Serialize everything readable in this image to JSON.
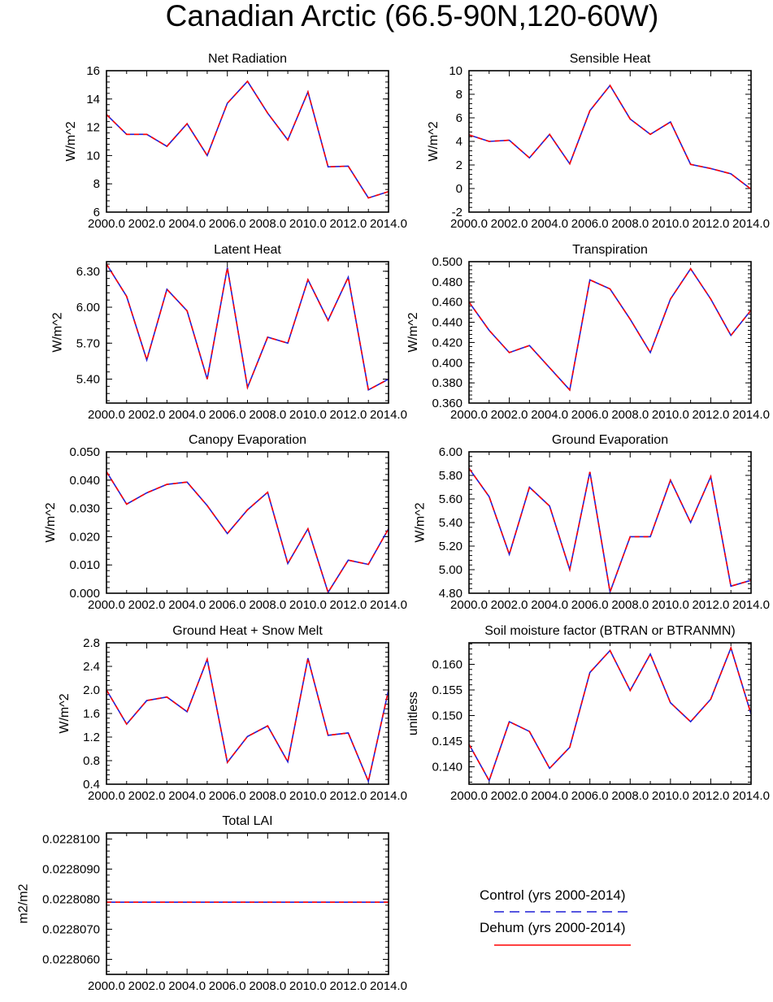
{
  "figure_title": "Canadian Arctic (66.5-90N,120-60W)",
  "colors": {
    "control": "#1f1fd6",
    "dehum": "#ff0000",
    "axis": "#000000"
  },
  "legend": {
    "control_label": "Control (yrs 2000-2014)",
    "dehum_label": "Dehum (yrs 2000-2014)"
  },
  "chart_data": [
    {
      "type": "line",
      "title": "Net Radiation",
      "xlabel": "",
      "ylabel": "W/m^2",
      "x": [
        2000,
        2001,
        2002,
        2003,
        2004,
        2005,
        2006,
        2007,
        2008,
        2009,
        2010,
        2011,
        2012,
        2013,
        2014
      ],
      "xlim": [
        2000,
        2014
      ],
      "xticks": [
        "2000.0",
        "2002.0",
        "2004.0",
        "2006.0",
        "2008.0",
        "2010.0",
        "2012.0",
        "2014.0"
      ],
      "ylim": [
        6,
        16
      ],
      "yticks": [
        "6",
        "8",
        "10",
        "12",
        "14",
        "16"
      ],
      "series": [
        {
          "name": "Control",
          "values": [
            12.9,
            11.5,
            11.5,
            10.65,
            12.25,
            10.0,
            13.7,
            15.25,
            13.0,
            11.1,
            14.5,
            9.2,
            9.25,
            7.0,
            7.45
          ]
        },
        {
          "name": "Dehum",
          "values": [
            12.9,
            11.5,
            11.5,
            10.65,
            12.25,
            10.0,
            13.7,
            15.25,
            13.0,
            11.1,
            14.5,
            9.2,
            9.25,
            7.0,
            7.45
          ]
        }
      ]
    },
    {
      "type": "line",
      "title": "Sensible Heat",
      "xlabel": "",
      "ylabel": "W/m^2",
      "x": [
        2000,
        2001,
        2002,
        2003,
        2004,
        2005,
        2006,
        2007,
        2008,
        2009,
        2010,
        2011,
        2012,
        2013,
        2014
      ],
      "xlim": [
        2000,
        2014
      ],
      "xticks": [
        "2000.0",
        "2002.0",
        "2004.0",
        "2006.0",
        "2008.0",
        "2010.0",
        "2012.0",
        "2014.0"
      ],
      "ylim": [
        -2,
        10
      ],
      "yticks": [
        "-2",
        "0",
        "2",
        "4",
        "6",
        "8",
        "10"
      ],
      "series": [
        {
          "name": "Control",
          "values": [
            4.55,
            4.0,
            4.1,
            2.6,
            4.6,
            2.1,
            6.6,
            8.75,
            5.9,
            4.6,
            5.65,
            2.05,
            1.7,
            1.25,
            -0.05
          ]
        },
        {
          "name": "Dehum",
          "values": [
            4.55,
            4.0,
            4.1,
            2.6,
            4.6,
            2.1,
            6.6,
            8.75,
            5.9,
            4.6,
            5.65,
            2.05,
            1.7,
            1.25,
            -0.05
          ]
        }
      ]
    },
    {
      "type": "line",
      "title": "Latent Heat",
      "xlabel": "",
      "ylabel": "W/m^2",
      "x": [
        2000,
        2001,
        2002,
        2003,
        2004,
        2005,
        2006,
        2007,
        2008,
        2009,
        2010,
        2011,
        2012,
        2013,
        2014
      ],
      "xlim": [
        2000,
        2014
      ],
      "xticks": [
        "2000.0",
        "2002.0",
        "2004.0",
        "2006.0",
        "2008.0",
        "2010.0",
        "2012.0",
        "2014.0"
      ],
      "ylim": [
        5.2,
        6.38
      ],
      "yticks": [
        "5.40",
        "5.70",
        "6.00",
        "6.30"
      ],
      "series": [
        {
          "name": "Control",
          "values": [
            6.36,
            6.09,
            5.56,
            6.15,
            5.97,
            5.4,
            6.33,
            5.33,
            5.75,
            5.7,
            6.23,
            5.89,
            6.25,
            5.31,
            5.4
          ]
        },
        {
          "name": "Dehum",
          "values": [
            6.36,
            6.09,
            5.56,
            6.15,
            5.97,
            5.4,
            6.33,
            5.33,
            5.75,
            5.7,
            6.23,
            5.89,
            6.25,
            5.31,
            5.4
          ]
        }
      ]
    },
    {
      "type": "line",
      "title": "Transpiration",
      "xlabel": "",
      "ylabel": "W/m^2",
      "x": [
        2000,
        2001,
        2002,
        2003,
        2004,
        2005,
        2006,
        2007,
        2008,
        2009,
        2010,
        2011,
        2012,
        2013,
        2014
      ],
      "xlim": [
        2000,
        2014
      ],
      "xticks": [
        "2000.0",
        "2002.0",
        "2004.0",
        "2006.0",
        "2008.0",
        "2010.0",
        "2012.0",
        "2014.0"
      ],
      "ylim": [
        0.36,
        0.5
      ],
      "yticks": [
        "0.360",
        "0.380",
        "0.400",
        "0.420",
        "0.440",
        "0.460",
        "0.480",
        "0.500"
      ],
      "series": [
        {
          "name": "Control",
          "values": [
            0.46,
            0.432,
            0.41,
            0.417,
            0.395,
            0.373,
            0.482,
            0.473,
            0.443,
            0.41,
            0.463,
            0.493,
            0.463,
            0.427,
            0.452
          ]
        },
        {
          "name": "Dehum",
          "values": [
            0.46,
            0.432,
            0.41,
            0.417,
            0.395,
            0.373,
            0.482,
            0.473,
            0.443,
            0.41,
            0.463,
            0.493,
            0.463,
            0.427,
            0.452
          ]
        }
      ]
    },
    {
      "type": "line",
      "title": "Canopy Evaporation",
      "xlabel": "",
      "ylabel": "W/m^2",
      "x": [
        2000,
        2001,
        2002,
        2003,
        2004,
        2005,
        2006,
        2007,
        2008,
        2009,
        2010,
        2011,
        2012,
        2013,
        2014
      ],
      "xlim": [
        2000,
        2014
      ],
      "xticks": [
        "2000.0",
        "2002.0",
        "2004.0",
        "2006.0",
        "2008.0",
        "2010.0",
        "2012.0",
        "2014.0"
      ],
      "ylim": [
        0,
        0.05
      ],
      "yticks": [
        "0.000",
        "0.010",
        "0.020",
        "0.030",
        "0.040",
        "0.050"
      ],
      "series": [
        {
          "name": "Control",
          "values": [
            0.043,
            0.0315,
            0.0355,
            0.0385,
            0.0393,
            0.031,
            0.0211,
            0.0295,
            0.0357,
            0.0105,
            0.0228,
            0.0003,
            0.0117,
            0.0102,
            0.0228
          ]
        },
        {
          "name": "Dehum",
          "values": [
            0.043,
            0.0315,
            0.0355,
            0.0385,
            0.0393,
            0.031,
            0.0211,
            0.0295,
            0.0357,
            0.0105,
            0.0228,
            0.0003,
            0.0117,
            0.0102,
            0.0228
          ]
        }
      ]
    },
    {
      "type": "line",
      "title": "Ground Evaporation",
      "xlabel": "",
      "ylabel": "W/m^2",
      "x": [
        2000,
        2001,
        2002,
        2003,
        2004,
        2005,
        2006,
        2007,
        2008,
        2009,
        2010,
        2011,
        2012,
        2013,
        2014
      ],
      "xlim": [
        2000,
        2014
      ],
      "xticks": [
        "2000.0",
        "2002.0",
        "2004.0",
        "2006.0",
        "2008.0",
        "2010.0",
        "2012.0",
        "2014.0"
      ],
      "ylim": [
        4.8,
        6.0
      ],
      "yticks": [
        "4.80",
        "5.00",
        "5.20",
        "5.40",
        "5.60",
        "5.80",
        "6.00"
      ],
      "series": [
        {
          "name": "Control",
          "values": [
            5.86,
            5.62,
            5.13,
            5.7,
            5.54,
            5.0,
            5.83,
            4.81,
            5.28,
            5.28,
            5.76,
            5.4,
            5.79,
            4.86,
            4.91
          ]
        },
        {
          "name": "Dehum",
          "values": [
            5.86,
            5.62,
            5.13,
            5.7,
            5.54,
            5.0,
            5.83,
            4.81,
            5.28,
            5.28,
            5.76,
            5.4,
            5.79,
            4.86,
            4.91
          ]
        }
      ]
    },
    {
      "type": "line",
      "title": "Ground Heat + Snow Melt",
      "xlabel": "",
      "ylabel": "W/m^2",
      "x": [
        2000,
        2001,
        2002,
        2003,
        2004,
        2005,
        2006,
        2007,
        2008,
        2009,
        2010,
        2011,
        2012,
        2013,
        2014
      ],
      "xlim": [
        2000,
        2014
      ],
      "xticks": [
        "2000.0",
        "2002.0",
        "2004.0",
        "2006.0",
        "2008.0",
        "2010.0",
        "2012.0",
        "2014.0"
      ],
      "ylim": [
        0.4,
        2.8
      ],
      "yticks": [
        "0.4",
        "0.8",
        "1.2",
        "1.6",
        "2.0",
        "2.4",
        "2.8"
      ],
      "series": [
        {
          "name": "Control",
          "values": [
            2.0,
            1.42,
            1.82,
            1.88,
            1.63,
            2.52,
            0.77,
            1.21,
            1.39,
            0.78,
            2.54,
            1.23,
            1.27,
            0.45,
            2.0
          ]
        },
        {
          "name": "Dehum",
          "values": [
            2.0,
            1.42,
            1.82,
            1.88,
            1.63,
            2.52,
            0.77,
            1.21,
            1.39,
            0.78,
            2.54,
            1.23,
            1.27,
            0.45,
            2.0
          ]
        }
      ]
    },
    {
      "type": "line",
      "title": "Soil moisture factor (BTRAN or BTRANMN)",
      "xlabel": "",
      "ylabel": "unitless",
      "x": [
        2000,
        2001,
        2002,
        2003,
        2004,
        2005,
        2006,
        2007,
        2008,
        2009,
        2010,
        2011,
        2012,
        2013,
        2014
      ],
      "xlim": [
        2000,
        2014
      ],
      "xticks": [
        "2000.0",
        "2002.0",
        "2004.0",
        "2006.0",
        "2008.0",
        "2010.0",
        "2012.0",
        "2014.0"
      ],
      "ylim": [
        0.1366,
        0.1642
      ],
      "yticks": [
        "0.140",
        "0.145",
        "0.150",
        "0.155",
        "0.160"
      ],
      "series": [
        {
          "name": "Control",
          "values": [
            0.1444,
            0.1373,
            0.1488,
            0.1469,
            0.1397,
            0.1438,
            0.1584,
            0.1627,
            0.1549,
            0.162,
            0.1525,
            0.1488,
            0.1532,
            0.1632,
            0.1503
          ]
        },
        {
          "name": "Dehum",
          "values": [
            0.1444,
            0.1373,
            0.1488,
            0.1469,
            0.1397,
            0.1438,
            0.1584,
            0.1627,
            0.1549,
            0.162,
            0.1525,
            0.1488,
            0.1532,
            0.1632,
            0.1503
          ]
        }
      ]
    },
    {
      "type": "line",
      "title": "Total LAI",
      "xlabel": "",
      "ylabel": "m2/m2",
      "x": [
        2000,
        2001,
        2002,
        2003,
        2004,
        2005,
        2006,
        2007,
        2008,
        2009,
        2010,
        2011,
        2012,
        2013,
        2014
      ],
      "xlim": [
        2000,
        2014
      ],
      "xticks": [
        "2000.0",
        "2002.0",
        "2004.0",
        "2006.0",
        "2008.0",
        "2010.0",
        "2012.0",
        "2014.0"
      ],
      "ylim": [
        0.0228055,
        0.0228102
      ],
      "yticks": [
        "0.0228060",
        "0.0228070",
        "0.0228080",
        "0.0228090",
        "0.0228100"
      ],
      "series": [
        {
          "name": "Control",
          "values": [
            0.0228079,
            0.0228079,
            0.0228079,
            0.0228079,
            0.0228079,
            0.0228079,
            0.0228079,
            0.0228079,
            0.0228079,
            0.0228079,
            0.0228079,
            0.0228079,
            0.0228079,
            0.0228079,
            0.0228079
          ]
        },
        {
          "name": "Dehum",
          "values": [
            0.0228079,
            0.0228079,
            0.0228079,
            0.0228079,
            0.0228079,
            0.0228079,
            0.0228079,
            0.0228079,
            0.0228079,
            0.0228079,
            0.0228079,
            0.0228079,
            0.0228079,
            0.0228079,
            0.0228079
          ]
        }
      ]
    }
  ]
}
